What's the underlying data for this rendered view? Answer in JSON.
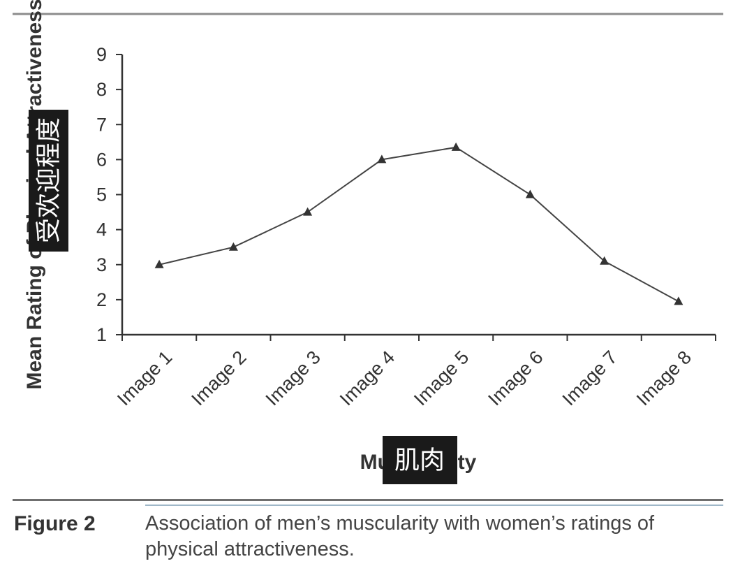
{
  "chart_data": {
    "type": "line",
    "categories": [
      "Image 1",
      "Image 2",
      "Image 3",
      "Image 4",
      "Image 5",
      "Image 6",
      "Image 7",
      "Image 8"
    ],
    "series": [
      {
        "values": [
          3.0,
          3.5,
          4.5,
          6.0,
          6.35,
          5.0,
          3.1,
          1.95
        ]
      }
    ],
    "marker": "triangle",
    "ylim": [
      1,
      9
    ],
    "yticks": [
      "1",
      "2",
      "3",
      "4",
      "5",
      "6",
      "7",
      "8",
      "9"
    ],
    "ylabel": "Mean Rating of Physical Attractiveness",
    "xlabel": "Muscularity",
    "ylabel_overlay": "受欢迎程度",
    "xlabel_overlay": "肌肉",
    "grid": false,
    "colors": {
      "line": "#444444",
      "axis": "#333333",
      "overlay_bg": "#1a1a1a"
    }
  },
  "caption": {
    "label": "Figure 2",
    "text": "Association of men’s muscularity with women’s ratings of physical attractiveness."
  }
}
